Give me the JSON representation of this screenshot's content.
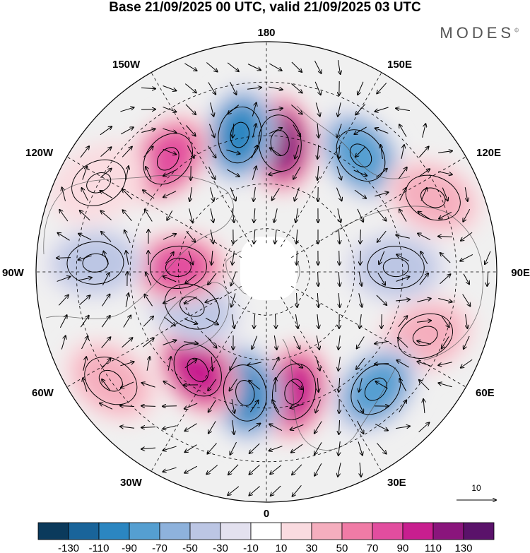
{
  "header": {
    "title": "Base 21/09/2025 00 UTC, valid 21/09/2025 03 UTC",
    "brand": "MODES",
    "brand_mark": "©"
  },
  "map": {
    "projection": "north-polar-stereographic",
    "lon_labels": {
      "top": "180",
      "bottom": "0",
      "left": "90W",
      "right": "90E",
      "upper_left_1": "150W",
      "upper_left_2": "120W",
      "upper_right_1": "150E",
      "upper_right_2": "120E",
      "lower_left_1": "60W",
      "lower_left_2": "30W",
      "lower_right_1": "60E",
      "lower_right_2": "30E"
    },
    "anomaly_centers": [
      {
        "lon": 174,
        "lat": 47,
        "value": 135
      },
      {
        "lon": -169,
        "lat": 44,
        "value": -100
      },
      {
        "lon": -139,
        "lat": 41,
        "value": 85
      },
      {
        "lon": 141,
        "lat": 41,
        "value": -95
      },
      {
        "lon": 114,
        "lat": 32,
        "value": 40
      },
      {
        "lon": 92,
        "lat": 47,
        "value": -45
      },
      {
        "lon": 68,
        "lat": 35,
        "value": 40
      },
      {
        "lon": 43,
        "lat": 38,
        "value": -85
      },
      {
        "lon": 13,
        "lat": 49,
        "value": 100
      },
      {
        "lon": -10,
        "lat": 49,
        "value": -105
      },
      {
        "lon": -35,
        "lat": 50,
        "value": 115
      },
      {
        "lon": -65,
        "lat": 62,
        "value": -50
      },
      {
        "lon": -93,
        "lat": 60,
        "value": 80
      },
      {
        "lon": -93,
        "lat": 35,
        "value": -45
      },
      {
        "lon": -118,
        "lat": 30,
        "value": 30
      },
      {
        "lon": -55,
        "lat": 30,
        "value": 40
      }
    ]
  },
  "vector_ref": {
    "label": "10"
  },
  "colorbar": {
    "labels": [
      "-130",
      "-110",
      "-90",
      "-70",
      "-50",
      "-30",
      "-10",
      "10",
      "30",
      "50",
      "70",
      "90",
      "110",
      "130"
    ],
    "colors": [
      "#0b3a5c",
      "#19649a",
      "#2b86c1",
      "#559fd1",
      "#8eb2dc",
      "#bcc6e4",
      "#e3e1ef",
      "#ffffff",
      "#fadbe0",
      "#f5aebe",
      "#f07ba6",
      "#e24d9f",
      "#c81e8f",
      "#8a157c",
      "#5a126a"
    ]
  }
}
